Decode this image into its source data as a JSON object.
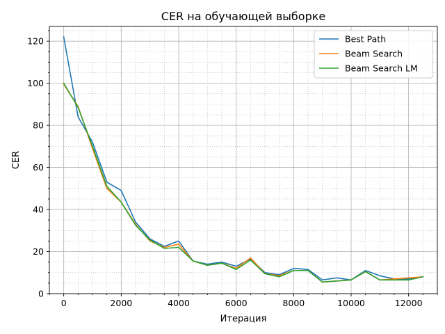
{
  "chart_data": {
    "type": "line",
    "title": "CER на обучающей выборке",
    "xlabel": "Итерация",
    "ylabel": "CER",
    "xlim": [
      -500,
      13000
    ],
    "ylim": [
      0,
      127
    ],
    "xticks": [
      0,
      2000,
      4000,
      6000,
      8000,
      10000,
      12000
    ],
    "yticks": [
      0,
      20,
      40,
      60,
      80,
      100,
      120
    ],
    "xticks_minor_step": 500,
    "yticks_minor_step": 5,
    "grid": true,
    "legend": "top-right",
    "x": [
      0,
      500,
      1000,
      1500,
      2000,
      2500,
      3000,
      3500,
      4000,
      4500,
      5000,
      5500,
      6000,
      6500,
      7000,
      7500,
      8000,
      8500,
      9000,
      9500,
      10000,
      10500,
      11000,
      11500,
      12000,
      12500
    ],
    "series": [
      {
        "name": "Best Path",
        "color": "#1f77b4",
        "values": [
          122,
          84,
          72,
          53,
          49,
          34,
          26,
          22.5,
          25,
          15.5,
          14,
          15,
          13,
          16.5,
          10,
          9,
          12,
          11.5,
          6.5,
          7.5,
          6.5,
          11,
          8.5,
          7,
          7,
          8
        ]
      },
      {
        "name": "Beam Search",
        "color": "#ff7f0e",
        "values": [
          99.5,
          89,
          69,
          50,
          43.5,
          33,
          25,
          22,
          23.5,
          15.5,
          13.5,
          14.5,
          12,
          17,
          9.5,
          8.5,
          11,
          11,
          5.5,
          6,
          6.5,
          10.5,
          6.5,
          7,
          7.5,
          8
        ]
      },
      {
        "name": "Beam Search LM",
        "color": "#2ca02c",
        "values": [
          100,
          88.5,
          70,
          51,
          43.5,
          32.5,
          25.5,
          21.5,
          22,
          15.5,
          13.5,
          14.5,
          11.5,
          16,
          9.5,
          8,
          11,
          11,
          5.5,
          6,
          6.5,
          10.5,
          6.5,
          6.5,
          6.5,
          8
        ]
      }
    ]
  }
}
